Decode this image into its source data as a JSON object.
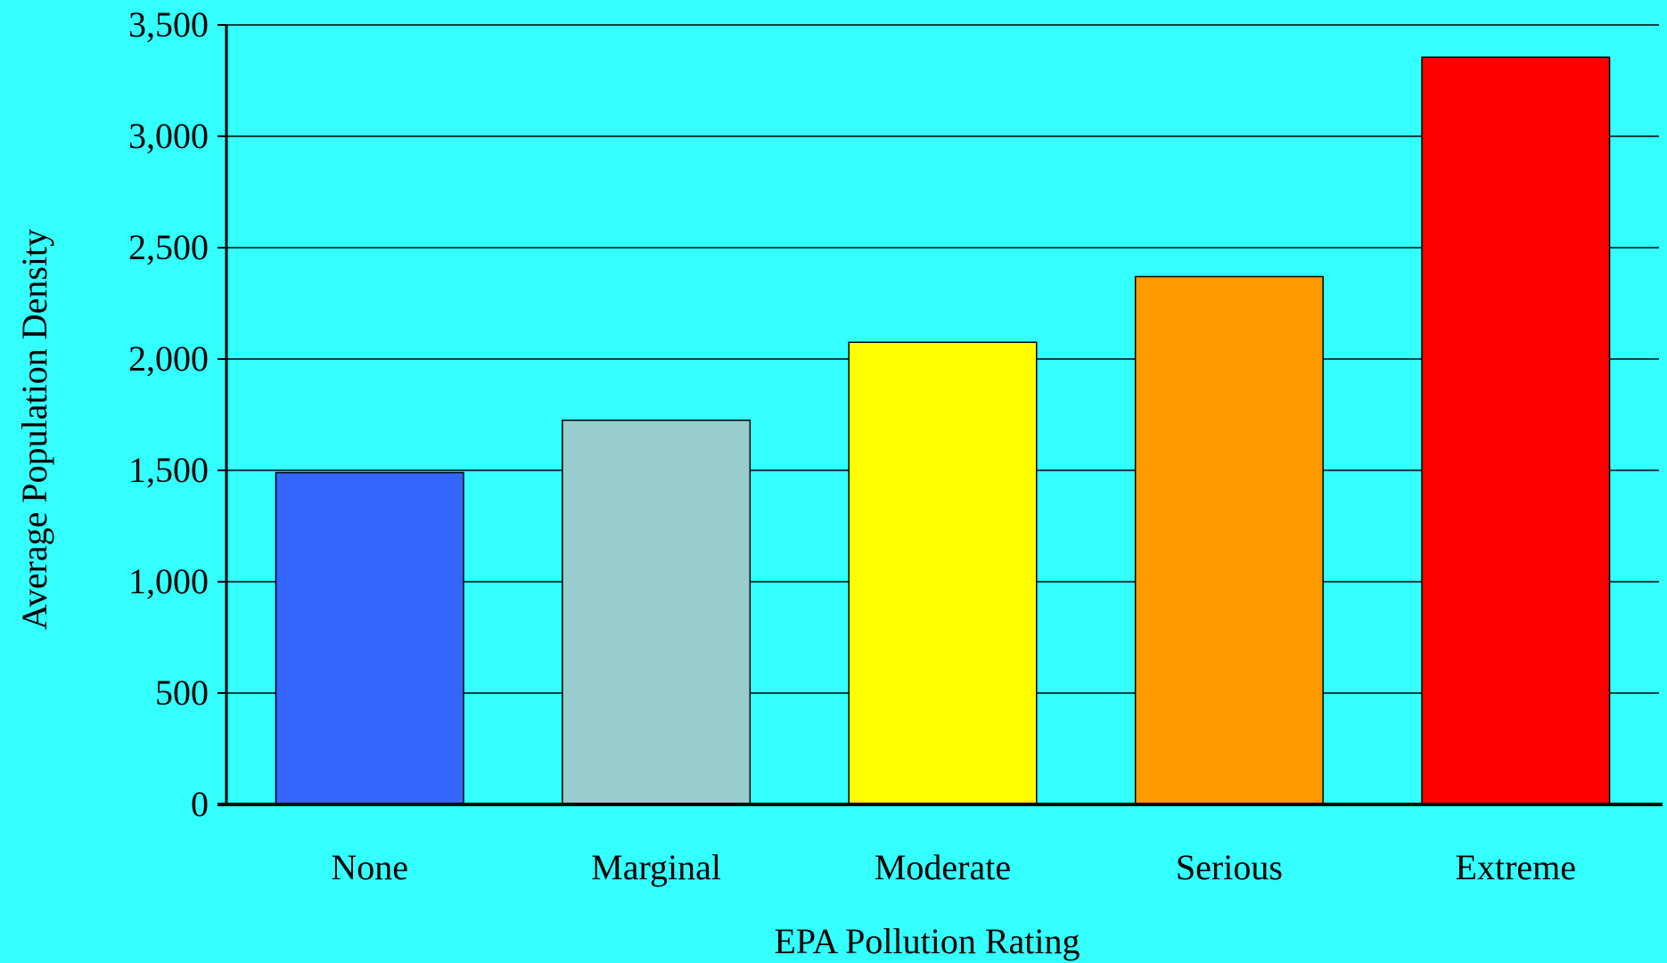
{
  "chart_data": {
    "type": "bar",
    "title": "",
    "xlabel": "EPA Pollution Rating",
    "ylabel": "Average Population Density",
    "categories": [
      "None",
      "Marginal",
      "Moderate",
      "Serious",
      "Extreme"
    ],
    "values": [
      1490,
      1725,
      2075,
      2370,
      3355
    ],
    "bar_colors": [
      "#3366FF",
      "#99CCCC",
      "#FFFF00",
      "#FF9900",
      "#FF0000"
    ],
    "ylim": [
      0,
      3500
    ],
    "yticks": [
      0,
      500,
      1000,
      1500,
      2000,
      2500,
      3000,
      3500
    ],
    "ytick_labels": [
      "0",
      "500",
      "1,000",
      "1,500",
      "2,000",
      "2,500",
      "3,000",
      "3,500"
    ],
    "grid": true,
    "legend": "none",
    "background": "#33FFFF"
  }
}
